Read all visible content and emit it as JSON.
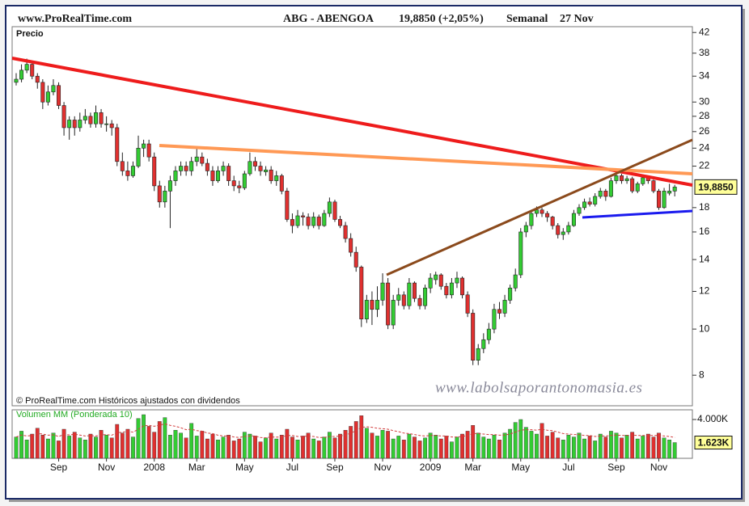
{
  "header": {
    "site": "www.ProRealTime.com",
    "instrument": "ABG - ABENGOA",
    "quote": "19,8850 (+2,05%)",
    "period": "Semanal",
    "date": "27 Nov"
  },
  "chart_data": [
    {
      "type": "candlestick",
      "title": "Precio",
      "categories": [
        null,
        null,
        null,
        null,
        null,
        null,
        null,
        null,
        "Sep",
        null,
        null,
        null,
        null,
        null,
        null,
        null,
        null,
        "Nov",
        null,
        null,
        null,
        null,
        null,
        null,
        null,
        null,
        "2008",
        null,
        null,
        null,
        null,
        null,
        null,
        null,
        "Mar",
        null,
        null,
        null,
        null,
        null,
        null,
        null,
        null,
        "May",
        null,
        null,
        null,
        null,
        null,
        null,
        null,
        null,
        "Jul",
        null,
        null,
        null,
        null,
        null,
        null,
        null,
        "Sep",
        null,
        null,
        null,
        null,
        null,
        null,
        null,
        null,
        "Nov",
        null,
        null,
        null,
        null,
        null,
        null,
        null,
        null,
        "2009",
        null,
        null,
        null,
        null,
        null,
        null,
        null,
        "Mar",
        null,
        null,
        null,
        null,
        null,
        null,
        null,
        null,
        "May",
        null,
        null,
        null,
        null,
        null,
        null,
        null,
        null,
        "Jul",
        null,
        null,
        null,
        null,
        null,
        null,
        null,
        null,
        "Sep",
        null,
        null,
        null,
        null,
        null,
        null,
        null,
        "Nov",
        null,
        null,
        null
      ],
      "open": [
        33,
        33.5,
        35,
        36,
        34,
        33,
        30,
        31.5,
        32.5,
        29.5,
        26.5,
        27.5,
        26.5,
        27.5,
        28,
        27,
        28.5,
        27,
        27,
        26.5,
        22.5,
        21.5,
        21,
        22,
        24,
        24.5,
        23,
        20,
        18.5,
        19.5,
        20.5,
        21.5,
        22,
        21.5,
        22.5,
        23,
        22.3,
        21.5,
        20.5,
        21.5,
        22,
        20.5,
        20,
        19.8,
        21.2,
        22.5,
        22,
        21.4,
        21.6,
        20.5,
        21,
        19.5,
        17,
        16.5,
        17.3,
        17.2,
        16.5,
        17.2,
        16.5,
        17.5,
        18.5,
        17,
        16.5,
        15.5,
        14.5,
        13.5,
        10.5,
        11.5,
        11,
        11.5,
        12.5,
        10.2,
        11.5,
        11.8,
        11.2,
        12.5,
        11.6,
        11.2,
        12.2,
        12.7,
        13,
        12.3,
        11.8,
        12.5,
        12.8,
        11.8,
        10.8,
        8.6,
        9.1,
        9.5,
        10,
        11,
        10.8,
        11.5,
        12.2,
        13,
        16,
        16.5,
        17.5,
        17.8,
        17.5,
        17.2,
        16.5,
        15.8,
        16,
        16.5,
        17.5,
        18,
        18.5,
        18.3,
        19,
        19.5,
        19,
        20.5,
        21,
        20.5,
        20.7,
        19.5,
        20.2,
        20.8,
        20.5,
        19.5,
        18,
        19.3,
        19.5
      ],
      "high": [
        34.5,
        36,
        37,
        36.5,
        34.5,
        33.5,
        32.5,
        33.5,
        33,
        30,
        28,
        28,
        28.5,
        29,
        28.5,
        29.5,
        29,
        28,
        27.5,
        27,
        23.5,
        22.5,
        22.5,
        25.5,
        25,
        25,
        23.5,
        20.5,
        20,
        21,
        22,
        22.5,
        22.5,
        23,
        24,
        23.5,
        22.8,
        22,
        22,
        22.5,
        22.3,
        21,
        20.5,
        21.5,
        23.5,
        23,
        22.5,
        22,
        22,
        21.5,
        21.2,
        19.8,
        17.5,
        17.8,
        17.6,
        17.5,
        17.6,
        17.4,
        17.8,
        18.9,
        18.7,
        17.3,
        16.8,
        15.9,
        14.9,
        13.6,
        11.8,
        12,
        12.3,
        13.1,
        12.8,
        11.8,
        12.2,
        12,
        12.8,
        12.6,
        11.8,
        12.4,
        13.1,
        13.2,
        13.1,
        12.5,
        12.8,
        13.2,
        12.9,
        12,
        11,
        9.3,
        9.8,
        10.3,
        11.3,
        11.4,
        11.8,
        12.4,
        13.4,
        16.3,
        16.8,
        17.8,
        18.1,
        18,
        17.7,
        17.3,
        16.7,
        16.3,
        16.8,
        17.8,
        18.3,
        18.8,
        18.9,
        19.3,
        19.8,
        19.7,
        20.8,
        21.4,
        21.2,
        21,
        20.9,
        20.4,
        21,
        21,
        20.6,
        19.7,
        19.8,
        20.2,
        20.1
      ],
      "low": [
        32.5,
        33,
        34.5,
        33.5,
        32,
        29,
        29.5,
        31,
        29,
        25.5,
        25,
        25.5,
        26,
        27,
        26.5,
        26.5,
        26.5,
        26,
        25.5,
        22,
        21,
        20.5,
        20.8,
        21.8,
        23,
        22.5,
        19.5,
        18,
        18,
        16.3,
        20,
        21,
        21,
        21,
        22,
        22,
        21,
        20,
        20.3,
        21,
        20,
        19.5,
        19.3,
        19.6,
        21,
        21.5,
        21,
        21,
        20.2,
        20,
        19.2,
        16.8,
        15.9,
        16.3,
        16.5,
        16.2,
        16.3,
        16.2,
        16.4,
        17.2,
        16.8,
        16.3,
        15.2,
        14.2,
        13.2,
        10.1,
        10.3,
        10.2,
        10.6,
        11.2,
        10,
        10,
        11.2,
        11,
        11,
        11.4,
        11,
        11,
        11.9,
        12.4,
        12.1,
        11.6,
        11.6,
        12.2,
        11.6,
        10.6,
        8.4,
        8.4,
        8.9,
        9.3,
        9.8,
        10.5,
        10.6,
        11.3,
        12,
        12.8,
        15.6,
        16.2,
        17.2,
        17.2,
        16.8,
        16.2,
        15.5,
        15.4,
        15.8,
        16.4,
        17.3,
        17.8,
        18.1,
        18.1,
        18.8,
        18.6,
        18.9,
        20.2,
        20.2,
        20.2,
        19.3,
        19.3,
        20,
        20.2,
        19.3,
        17.8,
        17.9,
        19.1,
        19
      ],
      "close": [
        33.5,
        35,
        36,
        34,
        33,
        30,
        31.5,
        32.5,
        29.5,
        26.5,
        27.5,
        26.5,
        27.5,
        28,
        27,
        28.5,
        27,
        27,
        26.5,
        22.5,
        21.5,
        21,
        22,
        24,
        24.5,
        23,
        20,
        18.5,
        19.5,
        20.5,
        21.5,
        22,
        21.5,
        22.5,
        23,
        22.3,
        21.5,
        20.5,
        21.5,
        22,
        20.5,
        20,
        19.8,
        21.2,
        22.5,
        22,
        21.5,
        21.6,
        20.5,
        21,
        19.5,
        17,
        16.5,
        17.3,
        17.2,
        16.5,
        17.2,
        16.5,
        17.5,
        18.5,
        17,
        16.5,
        15.5,
        14.5,
        13.5,
        10.5,
        11.5,
        11,
        11.5,
        12.5,
        10.2,
        11.5,
        11.8,
        11.2,
        12.5,
        11.6,
        11.2,
        12.2,
        12.8,
        13,
        12.3,
        11.8,
        12.5,
        12.8,
        11.8,
        10.8,
        8.6,
        9.1,
        9.5,
        10,
        11,
        10.8,
        11.5,
        12.2,
        13,
        16,
        16.5,
        17.5,
        17.8,
        17.5,
        17.2,
        16.5,
        15.8,
        16,
        16.5,
        17.5,
        18,
        18.5,
        18.3,
        19,
        19.5,
        19,
        20.5,
        21,
        20.5,
        20.7,
        19.5,
        20.2,
        20.8,
        20.5,
        19.5,
        18,
        19.5,
        19.5,
        19.885
      ],
      "ylim": [
        6.9,
        43.2
      ],
      "yticks": [
        8,
        10,
        12,
        14,
        16,
        18,
        22,
        24,
        26,
        28,
        30,
        34,
        38,
        42
      ],
      "log_scale": true,
      "up_color": "#33cc33",
      "down_color": "#e0302f",
      "price_label": {
        "value": 19.885,
        "label": "19,8850"
      },
      "footnote": "© ProRealTime.com  Históricos ajustados con dividendos",
      "watermark": "www.labolsaporantonomasia.es"
    },
    {
      "type": "bar",
      "title": "Volumen MM (Ponderada 10)",
      "values": [
        2200,
        2800,
        1900,
        2500,
        3100,
        2400,
        2000,
        2600,
        1800,
        3000,
        2300,
        2700,
        2100,
        1900,
        2500,
        2200,
        2900,
        2400,
        2100,
        3500,
        2600,
        3000,
        2200,
        4100,
        4500,
        3300,
        2700,
        3800,
        4200,
        2400,
        2900,
        2600,
        2100,
        3600,
        2300,
        2800,
        2000,
        2500,
        1900,
        2200,
        2400,
        1800,
        2000,
        2700,
        2500,
        2300,
        1700,
        2100,
        2600,
        2000,
        2400,
        3000,
        2200,
        1900,
        2300,
        2600,
        2000,
        1800,
        2200,
        2700,
        2100,
        2500,
        2900,
        3300,
        3800,
        4400,
        3100,
        2600,
        2300,
        2900,
        2800,
        2000,
        2300,
        1900,
        2500,
        2200,
        1800,
        2100,
        2600,
        2400,
        2000,
        2300,
        1700,
        2200,
        2500,
        2800,
        3400,
        2600,
        2200,
        2000,
        2400,
        1900,
        2600,
        3000,
        3700,
        4000,
        3200,
        2800,
        2500,
        3600,
        2300,
        2700,
        2100,
        1900,
        2400,
        2200,
        2600,
        2000,
        2300,
        1800,
        2500,
        2200,
        2800,
        2600,
        2100,
        2400,
        2700,
        2000,
        2300,
        2500,
        2200,
        2600,
        2100,
        1900,
        1623
      ],
      "ma": [
        2200,
        2400,
        2300,
        2350,
        2550,
        2500,
        2380,
        2420,
        2250,
        2450,
        2420,
        2480,
        2400,
        2300,
        2330,
        2300,
        2420,
        2440,
        2380,
        2650,
        2680,
        2780,
        2700,
        3000,
        3350,
        3400,
        3300,
        3420,
        3550,
        3400,
        3300,
        3150,
        2950,
        3000,
        2850,
        2800,
        2600,
        2550,
        2380,
        2300,
        2300,
        2200,
        2150,
        2250,
        2300,
        2300,
        2150,
        2120,
        2200,
        2180,
        2200,
        2350,
        2350,
        2250,
        2250,
        2300,
        2250,
        2150,
        2150,
        2250,
        2250,
        2300,
        2400,
        2600,
        2850,
        3200,
        3250,
        3200,
        3100,
        3050,
        3000,
        2850,
        2750,
        2600,
        2550,
        2450,
        2350,
        2300,
        2350,
        2350,
        2300,
        2300,
        2200,
        2200,
        2250,
        2350,
        2550,
        2550,
        2500,
        2450,
        2450,
        2380,
        2400,
        2500,
        2700,
        2900,
        2950,
        2950,
        2900,
        3000,
        2900,
        2850,
        2700,
        2550,
        2500,
        2450,
        2450,
        2350,
        2350,
        2250,
        2300,
        2300,
        2350,
        2400,
        2350,
        2350,
        2400,
        2350,
        2350,
        2350,
        2350,
        2350,
        2300,
        2250,
        2150
      ],
      "ma_color": "#d23c3c",
      "ylim": [
        0,
        5000
      ],
      "yticks": [
        {
          "value": 4000,
          "label": "4.000K"
        }
      ],
      "volume_label": {
        "value": 1623,
        "label": "1.623K"
      }
    }
  ]
}
